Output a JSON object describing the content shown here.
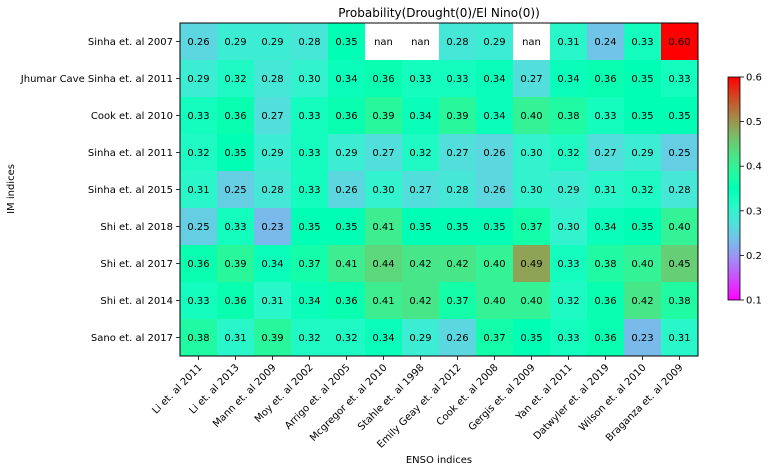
{
  "chart_data": {
    "type": "heatmap",
    "title": "Probability(Drought(0)/El Nino(0))",
    "xlabel": "ENSO indices",
    "ylabel": "IM indices",
    "x_categories": [
      "Li et. al 2011",
      "Li et. al 2013",
      "Mann et. al 2009",
      "Moy et. al 2002",
      "Arrigo et. al 2005",
      "Mcgregor et. al 2010",
      "Stahle et. al 1998",
      "Emily Geay et. al 2012",
      "Cook et. al 2008",
      "Gergis et. al 2009",
      "Yan et. al 2011",
      "Datwyler et. al 2019",
      "Wilson et. al 2010",
      "Braganza et. al 2009"
    ],
    "y_categories": [
      "Sinha et. al 2007",
      "Jhumar Cave Sinha et. al 2011",
      "Cook et. al 2010",
      "Sinha et. al 2011",
      "Sinha et. al 2015",
      "Shi et. al 2018",
      "Shi et. al 2017",
      "Shi et. al 2014",
      "Sano et. al 2017"
    ],
    "values": [
      [
        0.26,
        0.29,
        0.29,
        0.28,
        0.35,
        null,
        null,
        0.28,
        0.29,
        null,
        0.31,
        0.24,
        0.33,
        0.6
      ],
      [
        0.29,
        0.32,
        0.28,
        0.3,
        0.34,
        0.36,
        0.33,
        0.33,
        0.34,
        0.27,
        0.34,
        0.36,
        0.35,
        0.33
      ],
      [
        0.33,
        0.36,
        0.27,
        0.33,
        0.36,
        0.39,
        0.34,
        0.39,
        0.34,
        0.4,
        0.38,
        0.33,
        0.35,
        0.35
      ],
      [
        0.32,
        0.35,
        0.29,
        0.33,
        0.29,
        0.27,
        0.32,
        0.27,
        0.26,
        0.3,
        0.32,
        0.27,
        0.29,
        0.25
      ],
      [
        0.31,
        0.25,
        0.28,
        0.33,
        0.26,
        0.3,
        0.27,
        0.28,
        0.26,
        0.3,
        0.29,
        0.31,
        0.32,
        0.28
      ],
      [
        0.25,
        0.33,
        0.23,
        0.35,
        0.35,
        0.41,
        0.35,
        0.35,
        0.35,
        0.37,
        0.3,
        0.34,
        0.35,
        0.4
      ],
      [
        0.36,
        0.39,
        0.34,
        0.37,
        0.41,
        0.44,
        0.42,
        0.42,
        0.4,
        0.49,
        0.33,
        0.38,
        0.4,
        0.45
      ],
      [
        0.33,
        0.36,
        0.31,
        0.34,
        0.36,
        0.41,
        0.42,
        0.37,
        0.4,
        0.4,
        0.32,
        0.36,
        0.42,
        0.38
      ],
      [
        0.38,
        0.31,
        0.39,
        0.32,
        0.32,
        0.34,
        0.29,
        0.26,
        0.37,
        0.35,
        0.33,
        0.36,
        0.23,
        0.31
      ]
    ],
    "nan_label": "nan",
    "colormap": "rainbow",
    "vmin": 0.1,
    "vmax": 0.6,
    "colorbar_ticks": [
      "0.1",
      "0.2",
      "0.3",
      "0.4",
      "0.5",
      "0.6"
    ]
  }
}
